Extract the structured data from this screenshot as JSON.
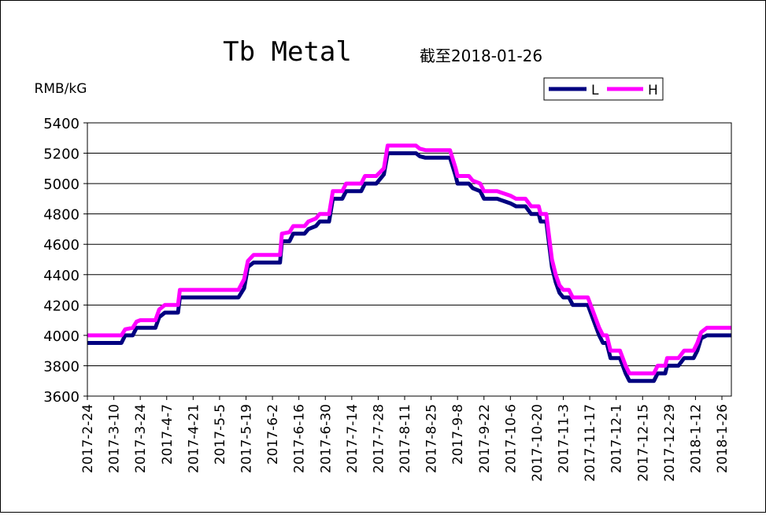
{
  "chart_data": {
    "type": "line",
    "title": "Tb Metal",
    "subtitle": "截至2018-01-26",
    "ylabel": "RMB/kG",
    "xlabel": "",
    "ylim": [
      3600,
      5400
    ],
    "yticks": [
      3600,
      3800,
      4000,
      4200,
      4400,
      4600,
      4800,
      5000,
      5200,
      5400
    ],
    "grid": true,
    "legend_position": "top-right",
    "x_tick_labels": [
      "2017-2-24",
      "2017-3-10",
      "2017-3-24",
      "2017-4-7",
      "2017-4-21",
      "2017-5-5",
      "2017-5-19",
      "2017-6-2",
      "2017-6-16",
      "2017-6-30",
      "2017-7-14",
      "2017-7-28",
      "2017-8-11",
      "2017-8-25",
      "2017-9-8",
      "2017-9-22",
      "2017-10-6",
      "2017-10-20",
      "2017-11-3",
      "2017-11-17",
      "2017-12-1",
      "2017-12-15",
      "2017-12-29",
      "2018-1-12",
      "2018-1-26"
    ],
    "x_start": "2017-02-24",
    "series": [
      {
        "name": "L",
        "color": "#000080",
        "points": [
          [
            "2017-02-24",
            3950
          ],
          [
            "2017-03-14",
            3950
          ],
          [
            "2017-03-16",
            4000
          ],
          [
            "2017-03-20",
            4000
          ],
          [
            "2017-03-22",
            4050
          ],
          [
            "2017-04-01",
            4050
          ],
          [
            "2017-04-03",
            4120
          ],
          [
            "2017-04-06",
            4150
          ],
          [
            "2017-04-13",
            4150
          ],
          [
            "2017-04-14",
            4250
          ],
          [
            "2017-05-15",
            4250
          ],
          [
            "2017-05-18",
            4310
          ],
          [
            "2017-05-20",
            4450
          ],
          [
            "2017-05-23",
            4480
          ],
          [
            "2017-06-06",
            4480
          ],
          [
            "2017-06-07",
            4620
          ],
          [
            "2017-06-11",
            4620
          ],
          [
            "2017-06-13",
            4670
          ],
          [
            "2017-06-19",
            4670
          ],
          [
            "2017-06-21",
            4700
          ],
          [
            "2017-06-25",
            4720
          ],
          [
            "2017-06-27",
            4750
          ],
          [
            "2017-07-02",
            4750
          ],
          [
            "2017-07-04",
            4900
          ],
          [
            "2017-07-09",
            4900
          ],
          [
            "2017-07-11",
            4950
          ],
          [
            "2017-07-19",
            4950
          ],
          [
            "2017-07-21",
            5000
          ],
          [
            "2017-07-27",
            5000
          ],
          [
            "2017-07-31",
            5060
          ],
          [
            "2017-08-02",
            5200
          ],
          [
            "2017-08-17",
            5200
          ],
          [
            "2017-08-19",
            5180
          ],
          [
            "2017-08-22",
            5170
          ],
          [
            "2017-09-04",
            5170
          ],
          [
            "2017-09-07",
            5050
          ],
          [
            "2017-09-08",
            5000
          ],
          [
            "2017-09-14",
            5000
          ],
          [
            "2017-09-16",
            4970
          ],
          [
            "2017-09-20",
            4950
          ],
          [
            "2017-09-22",
            4900
          ],
          [
            "2017-09-29",
            4900
          ],
          [
            "2017-10-06",
            4870
          ],
          [
            "2017-10-09",
            4850
          ],
          [
            "2017-10-14",
            4850
          ],
          [
            "2017-10-17",
            4800
          ],
          [
            "2017-10-21",
            4800
          ],
          [
            "2017-10-22",
            4750
          ],
          [
            "2017-10-25",
            4750
          ],
          [
            "2017-10-28",
            4450
          ],
          [
            "2017-10-30",
            4350
          ],
          [
            "2017-11-01",
            4280
          ],
          [
            "2017-11-03",
            4250
          ],
          [
            "2017-11-06",
            4250
          ],
          [
            "2017-11-08",
            4200
          ],
          [
            "2017-11-16",
            4200
          ],
          [
            "2017-11-19",
            4100
          ],
          [
            "2017-11-22",
            4000
          ],
          [
            "2017-11-24",
            3950
          ],
          [
            "2017-11-26",
            3950
          ],
          [
            "2017-11-28",
            3850
          ],
          [
            "2017-12-03",
            3850
          ],
          [
            "2017-12-06",
            3750
          ],
          [
            "2017-12-08",
            3700
          ],
          [
            "2017-12-21",
            3700
          ],
          [
            "2017-12-23",
            3750
          ],
          [
            "2017-12-27",
            3750
          ],
          [
            "2017-12-28",
            3800
          ],
          [
            "2018-01-03",
            3800
          ],
          [
            "2018-01-06",
            3850
          ],
          [
            "2018-01-11",
            3850
          ],
          [
            "2018-01-13",
            3900
          ],
          [
            "2018-01-15",
            3980
          ],
          [
            "2018-01-18",
            4000
          ],
          [
            "2018-01-31",
            4000
          ]
        ]
      },
      {
        "name": "H",
        "color": "#ff00ff",
        "points": [
          [
            "2017-02-24",
            4000
          ],
          [
            "2017-03-14",
            4000
          ],
          [
            "2017-03-16",
            4040
          ],
          [
            "2017-03-20",
            4050
          ],
          [
            "2017-03-22",
            4090
          ],
          [
            "2017-03-24",
            4100
          ],
          [
            "2017-04-01",
            4100
          ],
          [
            "2017-04-03",
            4170
          ],
          [
            "2017-04-06",
            4200
          ],
          [
            "2017-04-13",
            4200
          ],
          [
            "2017-04-14",
            4300
          ],
          [
            "2017-05-15",
            4300
          ],
          [
            "2017-05-18",
            4370
          ],
          [
            "2017-05-20",
            4490
          ],
          [
            "2017-05-23",
            4530
          ],
          [
            "2017-06-06",
            4530
          ],
          [
            "2017-06-07",
            4670
          ],
          [
            "2017-06-11",
            4680
          ],
          [
            "2017-06-13",
            4720
          ],
          [
            "2017-06-19",
            4720
          ],
          [
            "2017-06-21",
            4750
          ],
          [
            "2017-06-25",
            4770
          ],
          [
            "2017-06-27",
            4800
          ],
          [
            "2017-07-02",
            4800
          ],
          [
            "2017-07-04",
            4950
          ],
          [
            "2017-07-09",
            4950
          ],
          [
            "2017-07-11",
            5000
          ],
          [
            "2017-07-19",
            5000
          ],
          [
            "2017-07-21",
            5050
          ],
          [
            "2017-07-27",
            5050
          ],
          [
            "2017-07-31",
            5100
          ],
          [
            "2017-08-02",
            5250
          ],
          [
            "2017-08-17",
            5250
          ],
          [
            "2017-08-19",
            5230
          ],
          [
            "2017-08-22",
            5220
          ],
          [
            "2017-09-04",
            5220
          ],
          [
            "2017-09-07",
            5100
          ],
          [
            "2017-09-08",
            5050
          ],
          [
            "2017-09-14",
            5050
          ],
          [
            "2017-09-16",
            5020
          ],
          [
            "2017-09-20",
            5000
          ],
          [
            "2017-09-22",
            4950
          ],
          [
            "2017-09-29",
            4950
          ],
          [
            "2017-10-06",
            4920
          ],
          [
            "2017-10-09",
            4900
          ],
          [
            "2017-10-14",
            4900
          ],
          [
            "2017-10-17",
            4850
          ],
          [
            "2017-10-21",
            4850
          ],
          [
            "2017-10-22",
            4800
          ],
          [
            "2017-10-25",
            4800
          ],
          [
            "2017-10-28",
            4500
          ],
          [
            "2017-10-30",
            4400
          ],
          [
            "2017-11-01",
            4330
          ],
          [
            "2017-11-03",
            4300
          ],
          [
            "2017-11-06",
            4300
          ],
          [
            "2017-11-08",
            4250
          ],
          [
            "2017-11-16",
            4250
          ],
          [
            "2017-11-19",
            4150
          ],
          [
            "2017-11-22",
            4050
          ],
          [
            "2017-11-24",
            4000
          ],
          [
            "2017-11-26",
            4000
          ],
          [
            "2017-11-28",
            3900
          ],
          [
            "2017-12-03",
            3900
          ],
          [
            "2017-12-06",
            3800
          ],
          [
            "2017-12-08",
            3750
          ],
          [
            "2017-12-21",
            3750
          ],
          [
            "2017-12-23",
            3800
          ],
          [
            "2017-12-27",
            3800
          ],
          [
            "2017-12-28",
            3850
          ],
          [
            "2018-01-03",
            3850
          ],
          [
            "2018-01-06",
            3900
          ],
          [
            "2018-01-11",
            3900
          ],
          [
            "2018-01-13",
            3950
          ],
          [
            "2018-01-15",
            4020
          ],
          [
            "2018-01-18",
            4050
          ],
          [
            "2018-01-31",
            4050
          ]
        ]
      }
    ]
  }
}
